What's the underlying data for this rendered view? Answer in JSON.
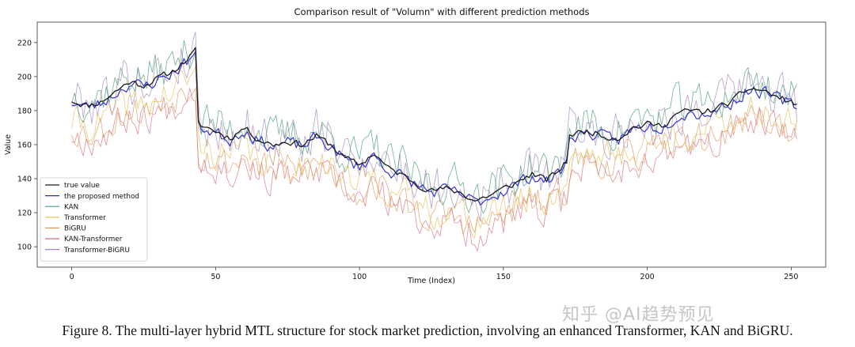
{
  "chart_data": {
    "type": "line",
    "title": "Comparison result of \"Volumn\" with different prediction methods",
    "xlabel": "Time (Index)",
    "ylabel": "Value",
    "xlim": [
      -12,
      262
    ],
    "ylim": [
      88,
      232
    ],
    "xticks": [
      0,
      50,
      100,
      150,
      200,
      250
    ],
    "yticks": [
      100,
      120,
      140,
      160,
      180,
      200,
      220
    ],
    "grid": false,
    "legend_position": "lower-left",
    "true_anchors": [
      [
        0,
        186
      ],
      [
        5,
        183
      ],
      [
        10,
        185
      ],
      [
        15,
        191
      ],
      [
        20,
        197
      ],
      [
        25,
        195
      ],
      [
        30,
        199
      ],
      [
        35,
        203
      ],
      [
        40,
        210
      ],
      [
        43,
        215
      ],
      [
        44,
        172
      ],
      [
        50,
        168
      ],
      [
        55,
        164
      ],
      [
        60,
        170
      ],
      [
        65,
        163
      ],
      [
        70,
        160
      ],
      [
        75,
        162
      ],
      [
        80,
        160
      ],
      [
        85,
        165
      ],
      [
        90,
        160
      ],
      [
        95,
        152
      ],
      [
        100,
        148
      ],
      [
        105,
        155
      ],
      [
        110,
        146
      ],
      [
        115,
        142
      ],
      [
        120,
        137
      ],
      [
        125,
        133
      ],
      [
        130,
        134
      ],
      [
        135,
        132
      ],
      [
        140,
        127
      ],
      [
        145,
        130
      ],
      [
        150,
        134
      ],
      [
        155,
        138
      ],
      [
        160,
        143
      ],
      [
        165,
        139
      ],
      [
        170,
        146
      ],
      [
        172,
        150
      ],
      [
        173,
        166
      ],
      [
        180,
        168
      ],
      [
        185,
        165
      ],
      [
        190,
        164
      ],
      [
        195,
        170
      ],
      [
        200,
        172
      ],
      [
        205,
        171
      ],
      [
        210,
        178
      ],
      [
        215,
        180
      ],
      [
        220,
        179
      ],
      [
        225,
        182
      ],
      [
        230,
        186
      ],
      [
        235,
        193
      ],
      [
        240,
        192
      ],
      [
        245,
        188
      ],
      [
        250,
        185
      ],
      [
        252,
        183
      ]
    ],
    "series": [
      {
        "name": "true value",
        "color": "#1a1a1a",
        "width": 1.3,
        "opacity": 1.0,
        "offset": 0,
        "noise": 1.8,
        "seed": 11
      },
      {
        "name": "the proposed method",
        "color": "#2b2bd6",
        "width": 1.2,
        "opacity": 0.95,
        "offset": -1,
        "noise": 3.5,
        "seed": 23
      },
      {
        "name": "KAN",
        "color": "#3d9a6a",
        "width": 0.8,
        "opacity": 0.75,
        "offset": 4,
        "noise": 11,
        "seed": 37
      },
      {
        "name": "Transformer",
        "color": "#e6b84a",
        "width": 0.8,
        "opacity": 0.75,
        "offset": -12,
        "noise": 9,
        "seed": 41
      },
      {
        "name": "BiGRU",
        "color": "#d98c4a",
        "width": 0.8,
        "opacity": 0.7,
        "offset": -16,
        "noise": 9,
        "seed": 53
      },
      {
        "name": "KAN-Transformer",
        "color": "#d95f6c",
        "width": 0.8,
        "opacity": 0.7,
        "offset": -20,
        "noise": 9,
        "seed": 67
      },
      {
        "name": "Transformer-BiGRU",
        "color": "#9a78b8",
        "width": 0.8,
        "opacity": 0.7,
        "offset": 2,
        "noise": 13,
        "seed": 79
      }
    ]
  },
  "caption": "Figure 8. The multi-layer hybrid MTL structure for stock market prediction, involving an enhanced Transformer, KAN and BiGRU.",
  "watermark": "知乎 @AI趋势预见"
}
